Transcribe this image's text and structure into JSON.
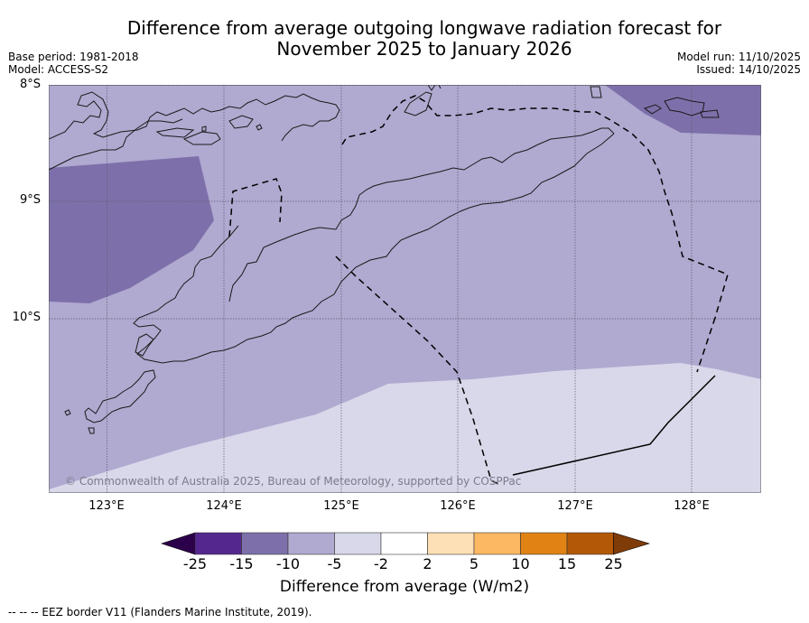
{
  "title_line1": "Difference from average outgoing longwave radiation forecast for",
  "title_line2": "November 2025 to January 2026",
  "meta": {
    "base_period": "Base period: 1981-2018",
    "model": "Model: ACCESS-S2",
    "model_run": "Model run: 11/10/2025",
    "issued": "Issued: 14/10/2025"
  },
  "axes": {
    "lat_labels": [
      "8°S",
      "9°S",
      "10°S"
    ],
    "lon_labels": [
      "123°E",
      "124°E",
      "125°E",
      "126°E",
      "127°E",
      "128°E"
    ],
    "lat_range": [
      -11.5,
      -8.0
    ],
    "lon_range": [
      122.5,
      128.6
    ]
  },
  "copyright": "© Commonwealth of Australia 2025, Bureau of Meteorology, supported by COSPPac",
  "colorbar": {
    "ticks": [
      "-25",
      "-15",
      "-10",
      "-5",
      "-2",
      "2",
      "5",
      "10",
      "15",
      "25"
    ],
    "colors": [
      "#54278f",
      "#7d70aa",
      "#b0a9d0",
      "#d8d8ea",
      "#ffffff",
      "#fee0b6",
      "#fdb863",
      "#e08214",
      "#b35806"
    ],
    "under_color": "#2d004b",
    "over_color": "#7f3b08",
    "label": "Difference from average (W/m2)"
  },
  "footnote": "--  --  -- EEZ border V11 (Flanders Marine Institute, 2019).",
  "chart_data": {
    "type": "heatmap",
    "title": "Difference from average outgoing longwave radiation forecast for November 2025 to January 2026",
    "units": "W/m2",
    "region": "Timor / Timor Sea",
    "lon_range": [
      122.5,
      128.6
    ],
    "lat_range": [
      -11.5,
      -8.0
    ],
    "classes": [
      {
        "range": "-15 to -10",
        "area": "west of Timor (approx 122.5–123.9°E, 8.7–9.9°S) and north-east corner (north of ~8.4°S, east of ~127.3°E)"
      },
      {
        "range": "-10 to -5",
        "area": "most of domain including Timor island"
      },
      {
        "range": "-5 to -2",
        "area": "south-east Timor Sea, south of roughly 10.5°S"
      }
    ],
    "legend": "bottom colorbar",
    "grid": true
  }
}
